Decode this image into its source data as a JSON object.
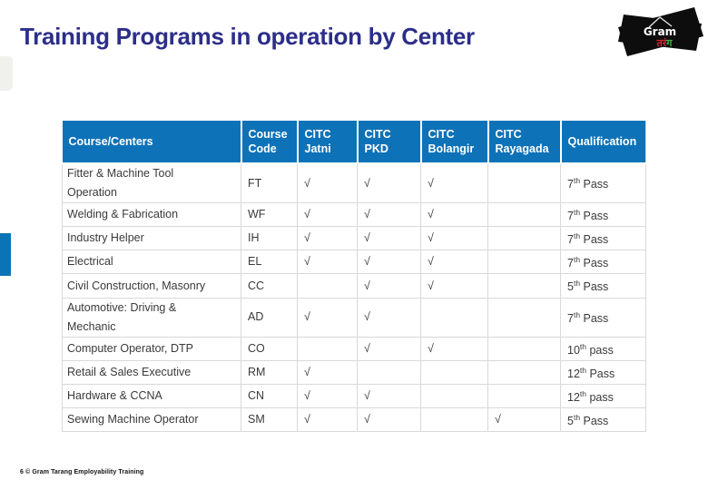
{
  "title": "Training Programs in operation by Center",
  "footer": {
    "text": "6 © Gram Tarang Employability Training"
  },
  "logo": {
    "name": "Gram Tarang logo",
    "text1": "Gram",
    "text2a": "तरं",
    "text2b": "ग"
  },
  "colors": {
    "title_text": "#2C2E8A",
    "table_header_bg": "#0E72B8",
    "table_grid": "#D9D9D9",
    "left_accent_blue": "#0C73B7",
    "left_accent_gray": "#F0F0ED",
    "logo_red": "#D9272E",
    "logo_green": "#3BB54A"
  },
  "check_mark": "√",
  "table": {
    "headers": [
      {
        "key": "course-centers",
        "lines": [
          "Course/Centers"
        ]
      },
      {
        "key": "course-code",
        "lines": [
          "Course",
          "Code"
        ]
      },
      {
        "key": "citc-jatni",
        "lines": [
          "CITC",
          "Jatni"
        ]
      },
      {
        "key": "citc-pkd",
        "lines": [
          "CITC",
          "PKD"
        ]
      },
      {
        "key": "citc-bolangir",
        "lines": [
          "CITC",
          "Bolangir"
        ]
      },
      {
        "key": "citc-rayagada",
        "lines": [
          "CITC",
          "Rayagada"
        ]
      },
      {
        "key": "qualification",
        "lines": [
          "Qualification"
        ]
      }
    ],
    "rows": [
      {
        "course": [
          "Fitter & Machine Tool",
          "Operation"
        ],
        "code": "FT",
        "marks": [
          "√",
          "√",
          "√",
          ""
        ],
        "qual": {
          "num": "7",
          "sup": "th",
          "rest": "Pass"
        }
      },
      {
        "course": [
          "Welding & Fabrication"
        ],
        "code": "WF",
        "marks": [
          "√",
          "√",
          "√",
          ""
        ],
        "qual": {
          "num": "7",
          "sup": "th",
          "rest": "Pass"
        }
      },
      {
        "course": [
          "Industry Helper"
        ],
        "code": "IH",
        "marks": [
          "√",
          "√",
          "√",
          ""
        ],
        "qual": {
          "num": "7",
          "sup": "th",
          "rest": "Pass"
        }
      },
      {
        "course": [
          "Electrical"
        ],
        "code": "EL",
        "marks": [
          "√",
          "√",
          "√",
          ""
        ],
        "qual": {
          "num": "7",
          "sup": "th",
          "rest": "Pass"
        }
      },
      {
        "course": [
          "Civil Construction, Masonry"
        ],
        "code": "CC",
        "marks": [
          "",
          "√",
          "√",
          ""
        ],
        "qual": {
          "num": "5",
          "sup": "th",
          "rest": "Pass"
        }
      },
      {
        "course": [
          "Automotive: Driving &",
          "Mechanic"
        ],
        "code": "AD",
        "marks": [
          "√",
          "√",
          "",
          ""
        ],
        "qual": {
          "num": "7",
          "sup": "th",
          "rest": "Pass"
        }
      },
      {
        "course": [
          "Computer Operator, DTP"
        ],
        "code": "CO",
        "marks": [
          "",
          "√",
          "√",
          ""
        ],
        "qual": {
          "num": "10",
          "sup": "th",
          "rest": "pass"
        }
      },
      {
        "course": [
          "Retail & Sales Executive"
        ],
        "code": "RM",
        "marks": [
          "√",
          "",
          "",
          ""
        ],
        "qual": {
          "num": "12",
          "sup": "th",
          "rest": "Pass"
        }
      },
      {
        "course": [
          "Hardware & CCNA"
        ],
        "code": "CN",
        "marks": [
          "√",
          "√",
          "",
          ""
        ],
        "qual": {
          "num": "12",
          "sup": "th",
          "rest": "pass"
        }
      },
      {
        "course": [
          "Sewing Machine Operator"
        ],
        "code": "SM",
        "marks": [
          "√",
          "√",
          "",
          "√"
        ],
        "qual": {
          "num": "5",
          "sup": "th",
          "rest": "Pass"
        }
      }
    ]
  }
}
